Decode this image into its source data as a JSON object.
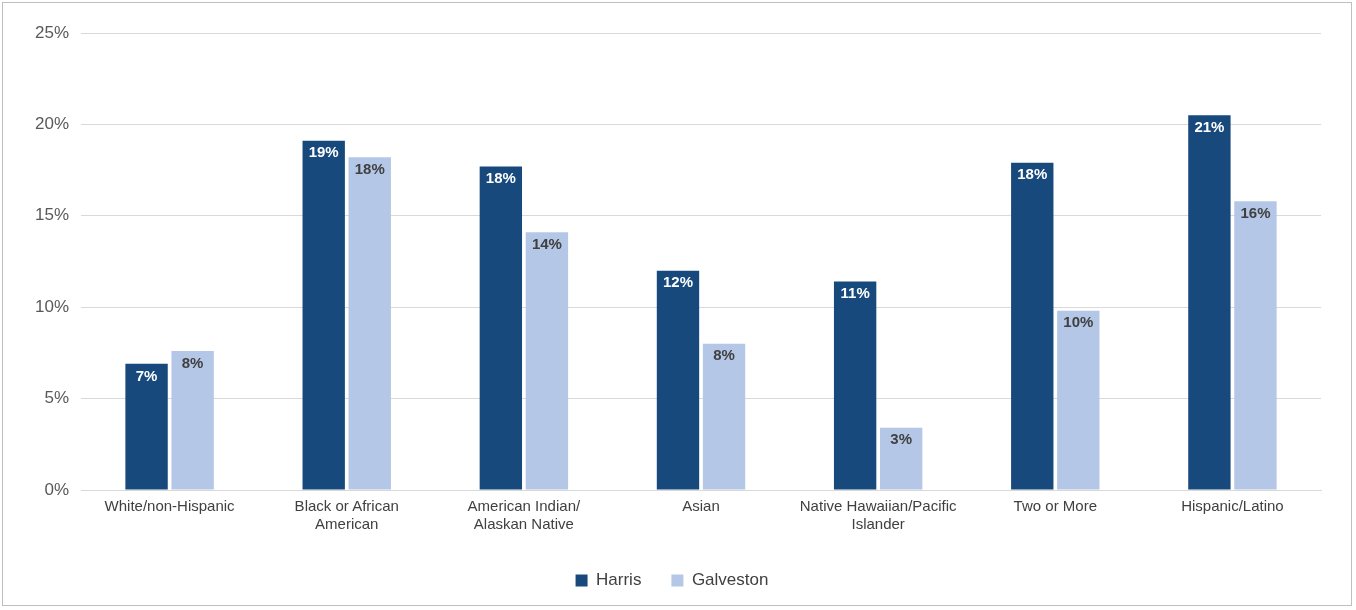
{
  "chart_data": {
    "type": "bar",
    "categories": [
      "White/non-Hispanic",
      "Black or African American",
      "American Indian/Alaskan Native",
      "Asian",
      "Native Hawaiian/Pacific Islander",
      "Two or More",
      "Hispanic/Latino"
    ],
    "series": [
      {
        "name": "Harris",
        "color": "#17497c",
        "values": [
          6.9,
          19.1,
          17.7,
          12.0,
          11.4,
          17.9,
          20.5
        ],
        "value_labels": [
          "7%",
          "19%",
          "18%",
          "12%",
          "11%",
          "18%",
          "21%"
        ]
      },
      {
        "name": "Galveston",
        "color": "#b4c7e7",
        "values": [
          7.6,
          18.2,
          14.1,
          8.0,
          3.4,
          9.8,
          15.8
        ],
        "value_labels": [
          "8%",
          "18%",
          "14%",
          "8%",
          "3%",
          "10%",
          "16%"
        ]
      }
    ],
    "ylim": [
      0,
      25
    ],
    "yticks": [
      {
        "value": 0,
        "label": "0%"
      },
      {
        "value": 5,
        "label": "5%"
      },
      {
        "value": 10,
        "label": "10%"
      },
      {
        "value": 15,
        "label": "15%"
      },
      {
        "value": 20,
        "label": "20%"
      },
      {
        "value": 25,
        "label": "25%"
      }
    ],
    "grid": "y",
    "legend": "bottom"
  }
}
